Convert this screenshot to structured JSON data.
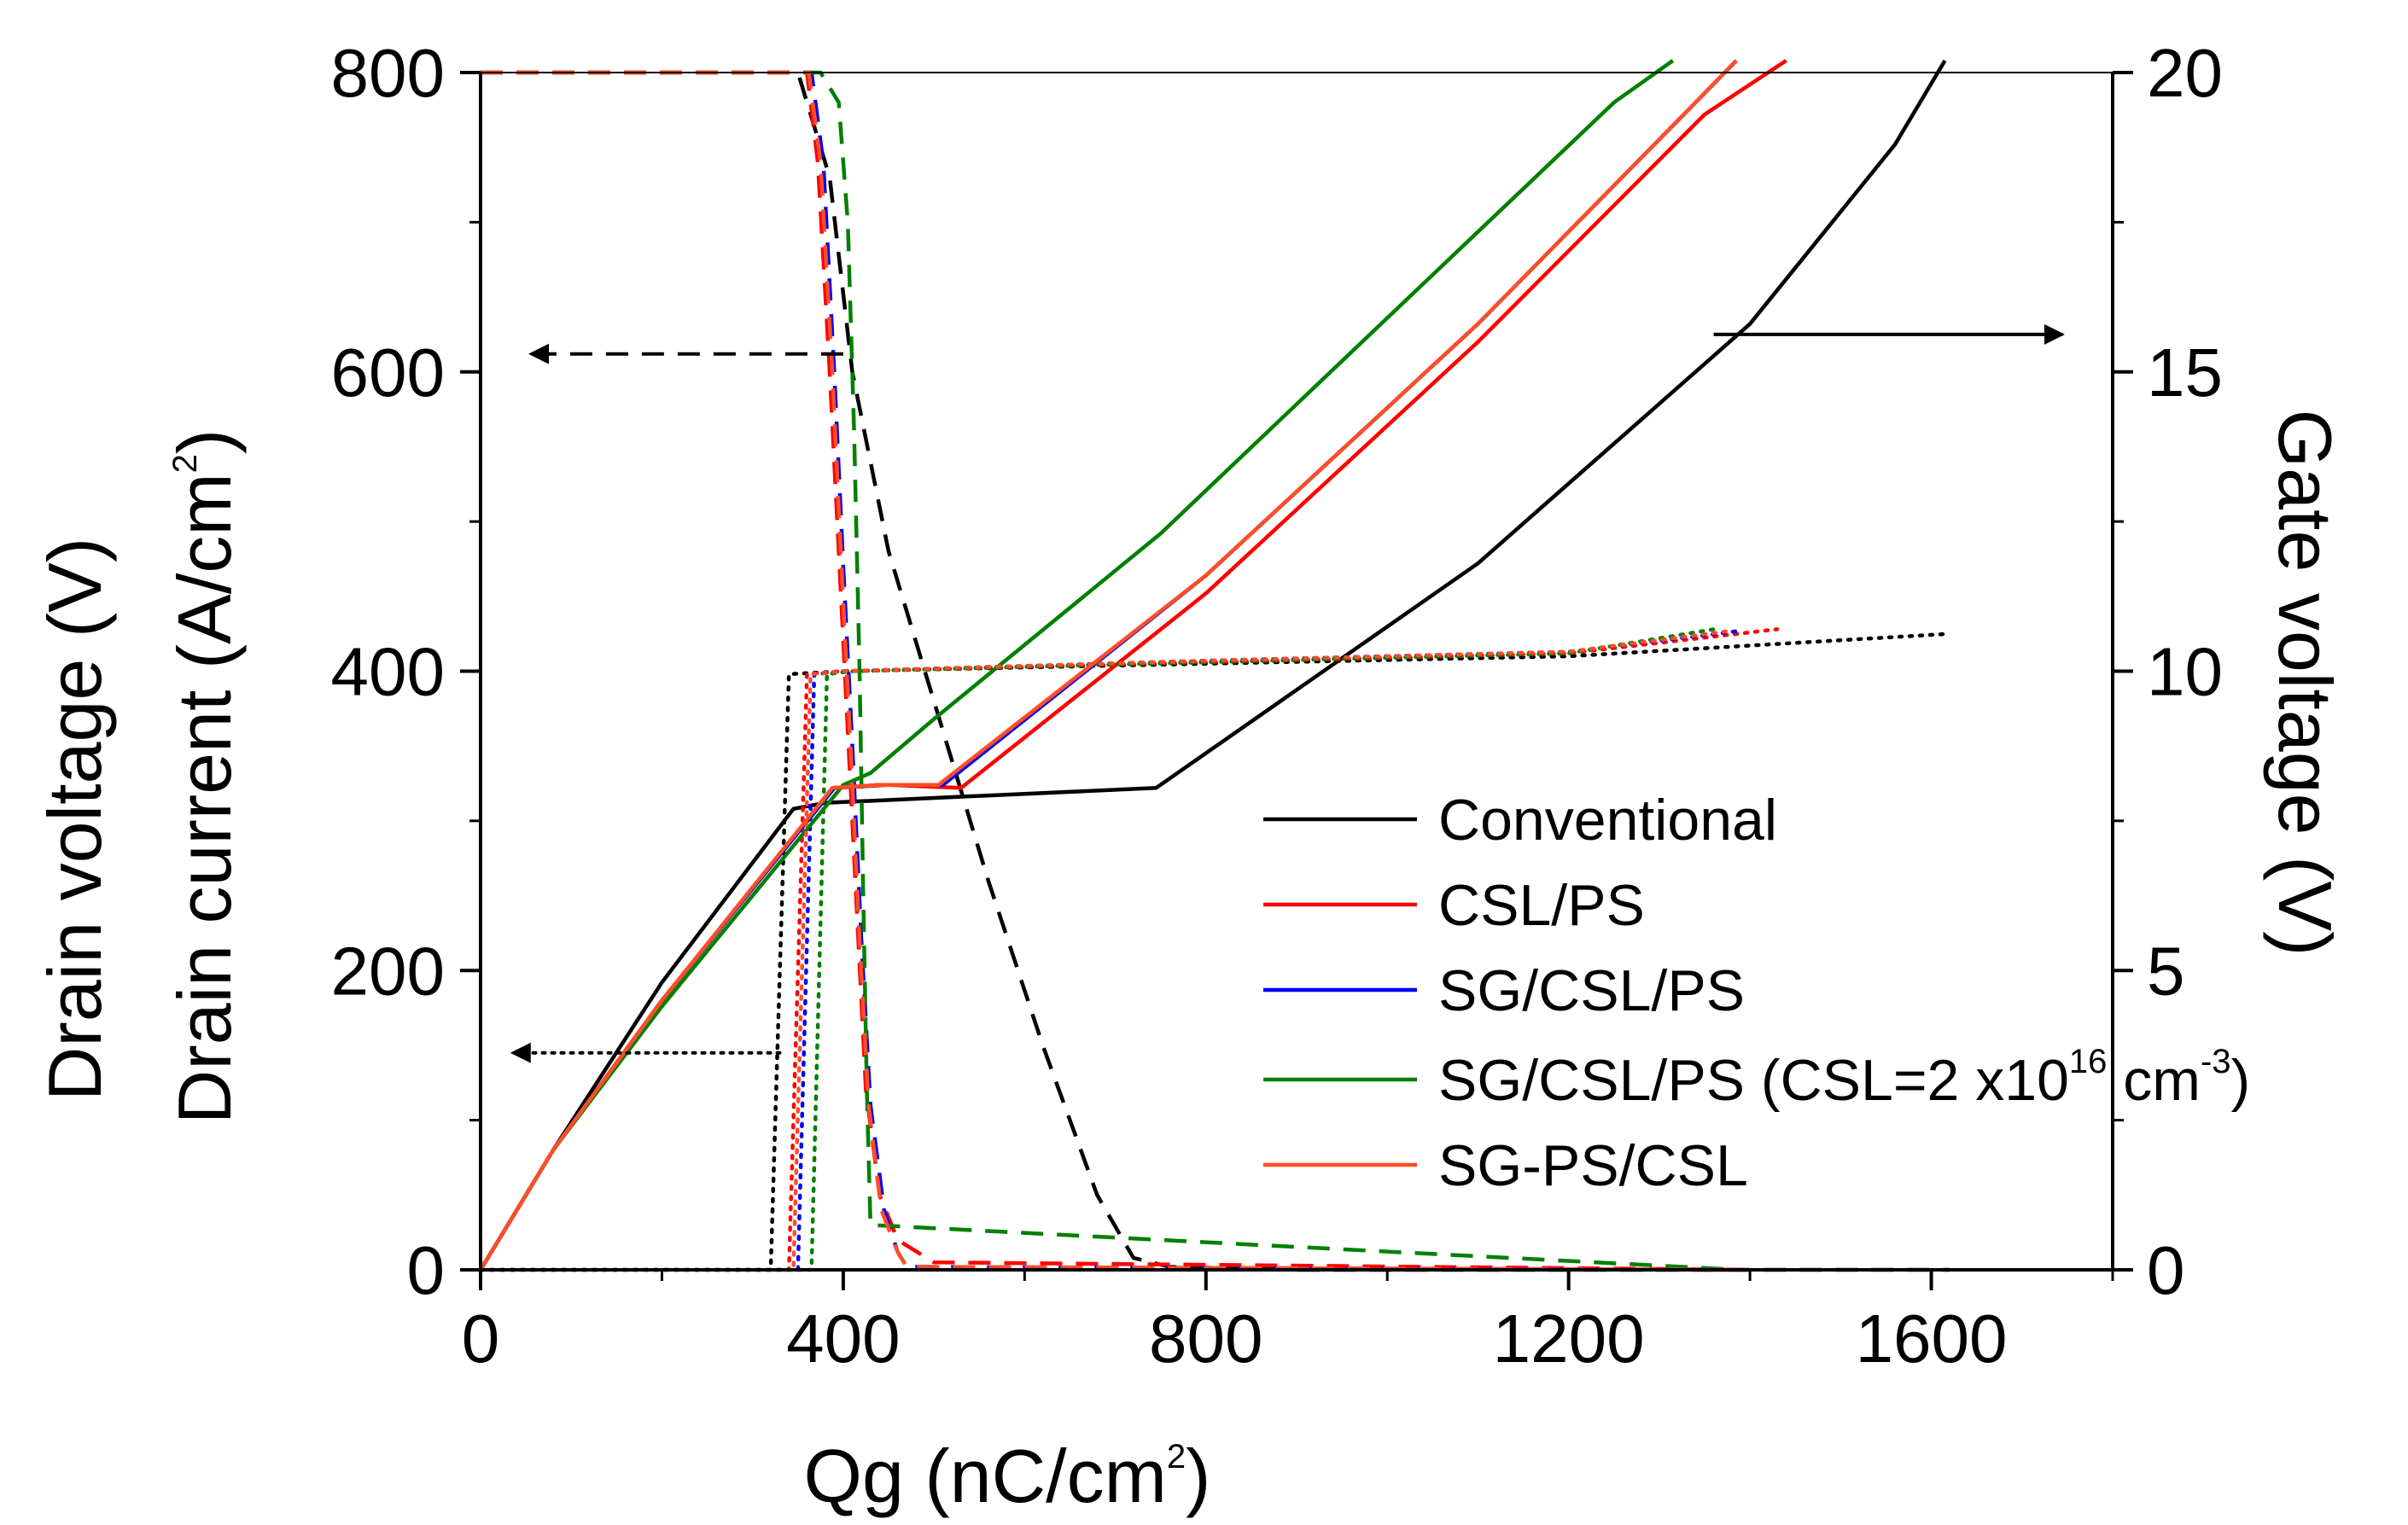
{
  "chart_data": {
    "type": "line",
    "title": "",
    "xlabel": "Qg (nC/cm²)",
    "xlabel_base": "Qg (nC/cm",
    "xlabel_sup": "2",
    "xlabel_tail": ")",
    "ylabel_left_line1": "Drain voltage (V)",
    "ylabel_left_line2_base": "Drain current (A/cm",
    "ylabel_left_line2_sup": "2",
    "ylabel_left_line2_tail": ")",
    "ylabel_right": "Gate voltage (V)",
    "xlim": [
      0,
      1800
    ],
    "ylim_left": [
      0,
      800
    ],
    "ylim_right": [
      0,
      20
    ],
    "x_ticks": [
      0,
      400,
      800,
      1200,
      1600
    ],
    "x_tick_labels": [
      "0",
      "400",
      "800",
      "1200",
      "1600"
    ],
    "y_left_ticks": [
      0,
      200,
      400,
      600,
      800
    ],
    "y_left_tick_labels": [
      "0",
      "200",
      "400",
      "600",
      "800"
    ],
    "y_right_ticks": [
      0,
      5,
      10,
      15,
      20
    ],
    "y_right_tick_labels": [
      "0",
      "5",
      "10",
      "15",
      "20"
    ],
    "grid": false,
    "legend_position": "lower-right",
    "line_styles": {
      "solid": "Gate voltage (right axis)",
      "dashed": "Drain voltage (left axis)",
      "dotted": "Drain current (left axis)"
    },
    "legend": [
      {
        "label": "Conventional",
        "color": "#000000"
      },
      {
        "label": "CSL/PS",
        "color": "#ff0000"
      },
      {
        "label": "SG/CSL/PS",
        "color": "#0000ff"
      },
      {
        "label": "SG/CSL/PS (CSL=2 x10",
        "sup1": "16",
        "mid": " cm",
        "sup2": "-3",
        "tail": ")",
        "color": "#008000"
      },
      {
        "label": "SG-PS/CSL",
        "color": "#ff4d26"
      }
    ],
    "series": [
      {
        "name": "Conventional",
        "color": "#000000",
        "gate_voltage": {
          "x": [
            0,
            80,
            200,
            345,
            380,
            745,
            1100,
            1400,
            1560,
            1615
          ],
          "y": [
            0,
            2,
            4.8,
            7.7,
            7.8,
            8.05,
            11.8,
            15.8,
            18.8,
            20.2
          ]
        },
        "drain_voltage": {
          "x": [
            0,
            350,
            385,
            410,
            450,
            500,
            560,
            620,
            680,
            720,
            760,
            900,
            1620
          ],
          "y": [
            800,
            800,
            730,
            600,
            480,
            380,
            260,
            150,
            50,
            8,
            2,
            0,
            0
          ]
        },
        "drain_current": {
          "x": [
            0,
            320,
            340,
            400,
            800,
            1200,
            1620
          ],
          "y": [
            0,
            0,
            398,
            400,
            405,
            410,
            425
          ]
        }
      },
      {
        "name": "CSL/PS",
        "color": "#ff0000",
        "gate_voltage": {
          "x": [
            0,
            80,
            200,
            390,
            450,
            530,
            800,
            1100,
            1350,
            1400,
            1440
          ],
          "y": [
            0,
            2,
            4.5,
            8.05,
            8.1,
            8.05,
            11.3,
            15.5,
            19.3,
            19.8,
            20.2
          ]
        },
        "drain_voltage": {
          "x": [
            0,
            360,
            372,
            385,
            395,
            405,
            415,
            425,
            440,
            460,
            500,
            1400
          ],
          "y": [
            800,
            800,
            740,
            600,
            480,
            360,
            240,
            120,
            50,
            20,
            5,
            0
          ]
        },
        "drain_current": {
          "x": [
            0,
            340,
            360,
            400,
            800,
            1200,
            1430
          ],
          "y": [
            0,
            0,
            398,
            400,
            406,
            412,
            428
          ]
        }
      },
      {
        "name": "SG/CSL/PS",
        "color": "#0000ff",
        "gate_voltage": {
          "x": [
            0,
            80,
            200,
            390,
            440,
            510,
            800,
            1100,
            1340,
            1385
          ],
          "y": [
            0,
            2,
            4.5,
            8.05,
            8.1,
            8.1,
            11.6,
            15.8,
            19.5,
            20.2
          ]
        },
        "drain_voltage": {
          "x": [
            0,
            365,
            378,
            390,
            400,
            410,
            420,
            430,
            445,
            460,
            470,
            1390
          ],
          "y": [
            800,
            800,
            740,
            600,
            470,
            350,
            220,
            110,
            40,
            12,
            2,
            0
          ]
        },
        "drain_current": {
          "x": [
            0,
            350,
            368,
            400,
            800,
            1200,
            1390
          ],
          "y": [
            0,
            0,
            398,
            400,
            407,
            413,
            427
          ]
        }
      },
      {
        "name": "SG/CSL/PS (CSL=2 x10^16 cm^-3)",
        "color": "#008000",
        "gate_voltage": {
          "x": [
            0,
            80,
            200,
            400,
            430,
            500,
            750,
            1000,
            1250,
            1315
          ],
          "y": [
            0,
            2,
            4.4,
            8.1,
            8.3,
            9.2,
            12.3,
            15.9,
            19.5,
            20.2
          ]
        },
        "drain_voltage": {
          "x": [
            0,
            375,
            395,
            405,
            412,
            418,
            422,
            426,
            430,
            1390
          ],
          "y": [
            800,
            800,
            780,
            700,
            560,
            400,
            250,
            120,
            30,
            0
          ]
        },
        "drain_current": {
          "x": [
            0,
            365,
            382,
            410,
            800,
            1200,
            1360
          ],
          "y": [
            0,
            0,
            398,
            400,
            406,
            412,
            428
          ]
        }
      },
      {
        "name": "SG-PS/CSL",
        "color": "#ff4d26",
        "gate_voltage": {
          "x": [
            0,
            80,
            200,
            388,
            440,
            505,
            800,
            1100,
            1340,
            1385
          ],
          "y": [
            0,
            2,
            4.5,
            8.05,
            8.1,
            8.1,
            11.6,
            15.8,
            19.5,
            20.2
          ]
        },
        "drain_voltage": {
          "x": [
            0,
            362,
            375,
            388,
            398,
            408,
            418,
            428,
            442,
            460,
            470,
            1390
          ],
          "y": [
            800,
            800,
            740,
            600,
            470,
            350,
            220,
            110,
            40,
            12,
            2,
            0
          ]
        },
        "drain_current": {
          "x": [
            0,
            345,
            364,
            400,
            800,
            1200,
            1380
          ],
          "y": [
            0,
            0,
            398,
            400,
            407,
            413,
            427
          ]
        }
      }
    ],
    "annotations": [
      {
        "name": "dashed-arrow-left",
        "label": "Drain voltage arrow pointing to left axis",
        "style": "dashed",
        "direction": "left",
        "x_start": 400,
        "x_end": 55,
        "y_left": 612
      },
      {
        "name": "dotted-arrow-left",
        "label": "Drain current arrow pointing to left axis",
        "style": "dotted",
        "direction": "left",
        "x_start": 330,
        "x_end": 35,
        "y_left": 145
      },
      {
        "name": "solid-arrow-right",
        "label": "Gate voltage arrow pointing to right axis",
        "style": "solid",
        "direction": "right",
        "x_start": 1360,
        "x_end": 1745,
        "y_left": 625
      }
    ]
  }
}
